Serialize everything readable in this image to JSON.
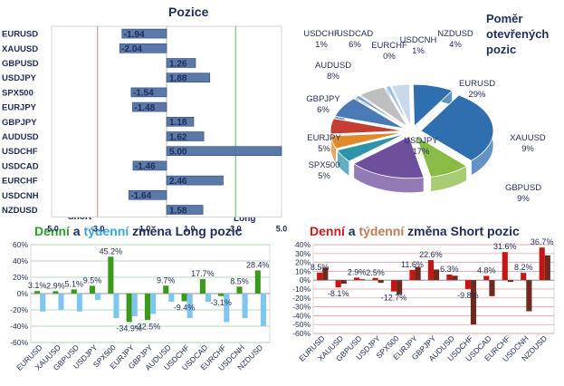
{
  "titles": {
    "positions": "Pozice",
    "ratio_line1": "Poměr",
    "ratio_line2": "otevřených",
    "ratio_line3": "pozic",
    "long_w1": "Denní",
    "long_w2": "a",
    "long_w3": "týdenní",
    "long_w4": "změna Long pozic",
    "short_w1": "Denní",
    "short_w2": "a",
    "short_w3": "týdenní",
    "short_w4": "změna Short pozic",
    "short_label": "Short",
    "long_label": "Long"
  },
  "colors": {
    "long_daily": "#3a9a1e",
    "long_weekly": "#7fc6ee",
    "short_daily": "#c81414",
    "short_weekly": "#6e2a1e",
    "position_bar": "#5a78a8",
    "pie": [
      "#2f6fb0",
      "#8abb45",
      "#6e4f9b",
      "#2f93ab",
      "#e08a2c",
      "#c33d33",
      "#4a7ab5",
      "#7a9cc8",
      "#bfbfbf",
      "#e8b24a",
      "#9ac0e0",
      "#c9d8ea"
    ]
  },
  "chart_data": [
    {
      "type": "bar",
      "orientation": "horizontal",
      "title": "Pozice",
      "categories": [
        "EURUSD",
        "XAUUSD",
        "GBPUSD",
        "USDJPY",
        "SPX500",
        "EURJPY",
        "GBPJPY",
        "AUDUSD",
        "USDCHF",
        "USDCAD",
        "EURCHF",
        "USDCNH",
        "NZDUSD"
      ],
      "values": [
        -1.94,
        -2.04,
        1.26,
        1.88,
        -1.54,
        -1.48,
        1.18,
        1.62,
        5.0,
        -1.46,
        2.46,
        -1.64,
        1.58
      ],
      "value_labels": [
        "-1.94",
        "-2.04",
        "1.26",
        "1.88",
        "-1.54",
        "-1.48",
        "1.18",
        "1.62",
        "5.00",
        "-1.46",
        "2.46",
        "-1.64",
        "1.58"
      ],
      "xlim": [
        -5.0,
        5.0
      ],
      "xticks": [
        "-5.0",
        "-3.0",
        "-1.0",
        "1.0",
        "3.0",
        "5.0"
      ],
      "reference_lines": [
        -3.0,
        3.0
      ]
    },
    {
      "type": "pie",
      "title": "Poměr otevřených pozic",
      "slices": [
        {
          "label": "EURUSD",
          "value": 29,
          "text": "29%"
        },
        {
          "label": "GBPUSD",
          "value": 9,
          "text": "9%"
        },
        {
          "label": "USDJPY",
          "value": 17,
          "text": "17%"
        },
        {
          "label": "SPX500",
          "value": 5,
          "text": "5%"
        },
        {
          "label": "EURJPY",
          "value": 5,
          "text": "5%"
        },
        {
          "label": "GBPJPY",
          "value": 6,
          "text": "6%"
        },
        {
          "label": "AUDUSD",
          "value": 8,
          "text": "8%"
        },
        {
          "label": "USDCHF",
          "value": 1,
          "text": "1%"
        },
        {
          "label": "USDCAD",
          "value": 6,
          "text": "6%"
        },
        {
          "label": "EURCHF",
          "value": 0,
          "text": "0%"
        },
        {
          "label": "USDCNH",
          "value": 1,
          "text": "1%"
        },
        {
          "label": "NZDUSD",
          "value": 4,
          "text": "4%"
        },
        {
          "label": "XAUUSD",
          "value": 9,
          "text": "9%"
        }
      ]
    },
    {
      "type": "bar",
      "title": "Denní a týdenní změna Long pozic",
      "categories": [
        "EURUSD",
        "XAUUSD",
        "GBPUSD",
        "USDJPY",
        "SPX500",
        "EURJPY",
        "GBPJPY",
        "AUDUSD",
        "USDCHF",
        "USDCAD",
        "EURCHF",
        "USDCNH",
        "NZDUSD"
      ],
      "series": [
        {
          "values": [
            3.1,
            2.9,
            5.1,
            9.5,
            45.2,
            -34.9,
            -32.5,
            9.7,
            -9.4,
            17.7,
            -3.1,
            8.5,
            28.4
          ]
        },
        {
          "values": [
            -22,
            -20,
            -22,
            -8,
            -30,
            -28,
            -25,
            -10,
            -30,
            -10,
            -35,
            -30,
            -40
          ]
        }
      ],
      "point_labels": [
        "3.1%",
        "2.9%",
        "5.1%",
        "9.5%",
        "45.2%",
        "-34.9%",
        "-32.5%",
        "9.7%",
        "-9.4%",
        "17.7%",
        "-3.1%",
        "8.5%",
        "28.4%"
      ],
      "ylim": [
        -60,
        60
      ],
      "yticks": [
        "60%",
        "40%",
        "20%",
        "0%",
        "-20%",
        "-40%",
        "-60%"
      ]
    },
    {
      "type": "bar",
      "title": "Denní a týdenní změna Short pozic",
      "categories": [
        "EURUSD",
        "XAUUSD",
        "GBPUSD",
        "USDJPY",
        "SPX500",
        "EURJPY",
        "GBPJPY",
        "AUDUSD",
        "USDCHF",
        "USDCAD",
        "EURCHF",
        "USDCNH",
        "NZDUSD"
      ],
      "series": [
        {
          "values": [
            8.5,
            -8.1,
            2.9,
            2.5,
            -12.7,
            11.6,
            22.6,
            6.3,
            -9.8,
            4.8,
            31.6,
            8.2,
            36.7
          ]
        },
        {
          "values": [
            14,
            -4,
            1,
            -3,
            -16,
            15,
            12,
            5,
            -50,
            -18,
            -2,
            -35,
            28
          ]
        }
      ],
      "point_labels": [
        "8.5%",
        "-8.1%",
        "2.9%",
        "2.5%",
        "-12.7%",
        "11.6%",
        "22.6%",
        "6.3%",
        "-9.8%",
        "4.8%",
        "31.6%",
        "8.2%",
        "36.7%"
      ],
      "ylim": [
        -60,
        40
      ],
      "yticks": [
        "40%",
        "30%",
        "20%",
        "10%",
        "0%",
        "-10%",
        "-20%",
        "-30%",
        "-40%",
        "-50%",
        "-60%"
      ]
    }
  ]
}
